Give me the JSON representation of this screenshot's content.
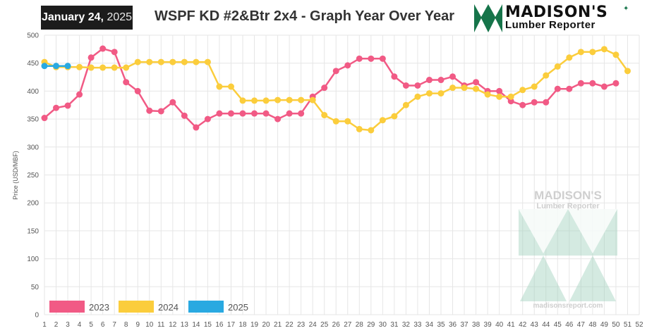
{
  "header": {
    "date_month_day": "January 24,",
    "date_year": "2025",
    "logo_name": "MADISON'S",
    "logo_sub": "Lumber Reporter",
    "watermark_name": "MADISON'S",
    "watermark_sub": "Lumber Reporter",
    "watermark_url": "madisonsreport.com"
  },
  "colors": {
    "2023": "#f15a85",
    "2024": "#fbcd3c",
    "2025": "#29a9e1",
    "brand_green": "#16744a",
    "watermark_green": "#9fd1bd"
  },
  "chart_data": {
    "type": "line",
    "title": "WSPF KD #2&Btr 2x4 - Graph Year Over Year",
    "xlabel": "",
    "ylabel": "Price (USD/MBF)",
    "xlim": [
      1,
      52
    ],
    "ylim": [
      0,
      500
    ],
    "y_ticks": [
      0,
      50,
      100,
      150,
      200,
      250,
      300,
      350,
      400,
      450,
      500
    ],
    "x_ticks": [
      1,
      2,
      3,
      4,
      5,
      6,
      7,
      8,
      9,
      10,
      11,
      12,
      13,
      14,
      15,
      16,
      17,
      18,
      19,
      20,
      21,
      22,
      23,
      24,
      25,
      26,
      27,
      28,
      29,
      30,
      31,
      32,
      33,
      34,
      35,
      36,
      37,
      38,
      39,
      40,
      41,
      42,
      43,
      44,
      45,
      46,
      47,
      48,
      49,
      50,
      51,
      52
    ],
    "grid": true,
    "legend": "bottom-left",
    "series": [
      {
        "name": "2023",
        "x": [
          1,
          2,
          3,
          4,
          5,
          6,
          7,
          8,
          9,
          10,
          11,
          12,
          13,
          14,
          15,
          16,
          17,
          18,
          19,
          20,
          21,
          22,
          23,
          24,
          25,
          26,
          27,
          28,
          29,
          30,
          31,
          32,
          33,
          34,
          35,
          36,
          37,
          38,
          39,
          40,
          41,
          42,
          43,
          44,
          45,
          46,
          47,
          48,
          49,
          50
        ],
        "values": [
          352,
          370,
          374,
          394,
          460,
          476,
          470,
          416,
          400,
          365,
          364,
          380,
          356,
          335,
          350,
          360,
          360,
          360,
          360,
          360,
          350,
          360,
          360,
          390,
          406,
          436,
          446,
          458,
          458,
          458,
          426,
          410,
          410,
          420,
          420,
          426,
          410,
          416,
          400,
          400,
          382,
          375,
          380,
          380,
          404,
          404,
          414,
          414,
          408,
          414
        ]
      },
      {
        "name": "2024",
        "x": [
          1,
          2,
          3,
          4,
          5,
          6,
          7,
          8,
          9,
          10,
          11,
          12,
          13,
          14,
          15,
          16,
          17,
          18,
          19,
          20,
          21,
          22,
          23,
          24,
          25,
          26,
          27,
          28,
          29,
          30,
          31,
          32,
          33,
          34,
          35,
          36,
          37,
          38,
          39,
          40,
          41,
          42,
          43,
          44,
          45,
          46,
          47,
          48,
          49,
          50,
          51
        ],
        "values": [
          452,
          443,
          443,
          443,
          442,
          442,
          442,
          442,
          452,
          452,
          452,
          452,
          452,
          452,
          452,
          408,
          408,
          383,
          383,
          383,
          384,
          384,
          384,
          384,
          357,
          346,
          346,
          332,
          330,
          348,
          355,
          375,
          390,
          396,
          396,
          406,
          406,
          404,
          394,
          390,
          390,
          402,
          408,
          428,
          444,
          460,
          470,
          470,
          475,
          465,
          436
        ]
      },
      {
        "name": "2025",
        "x": [
          1,
          2,
          3
        ],
        "values": [
          445,
          445,
          445
        ]
      }
    ]
  }
}
